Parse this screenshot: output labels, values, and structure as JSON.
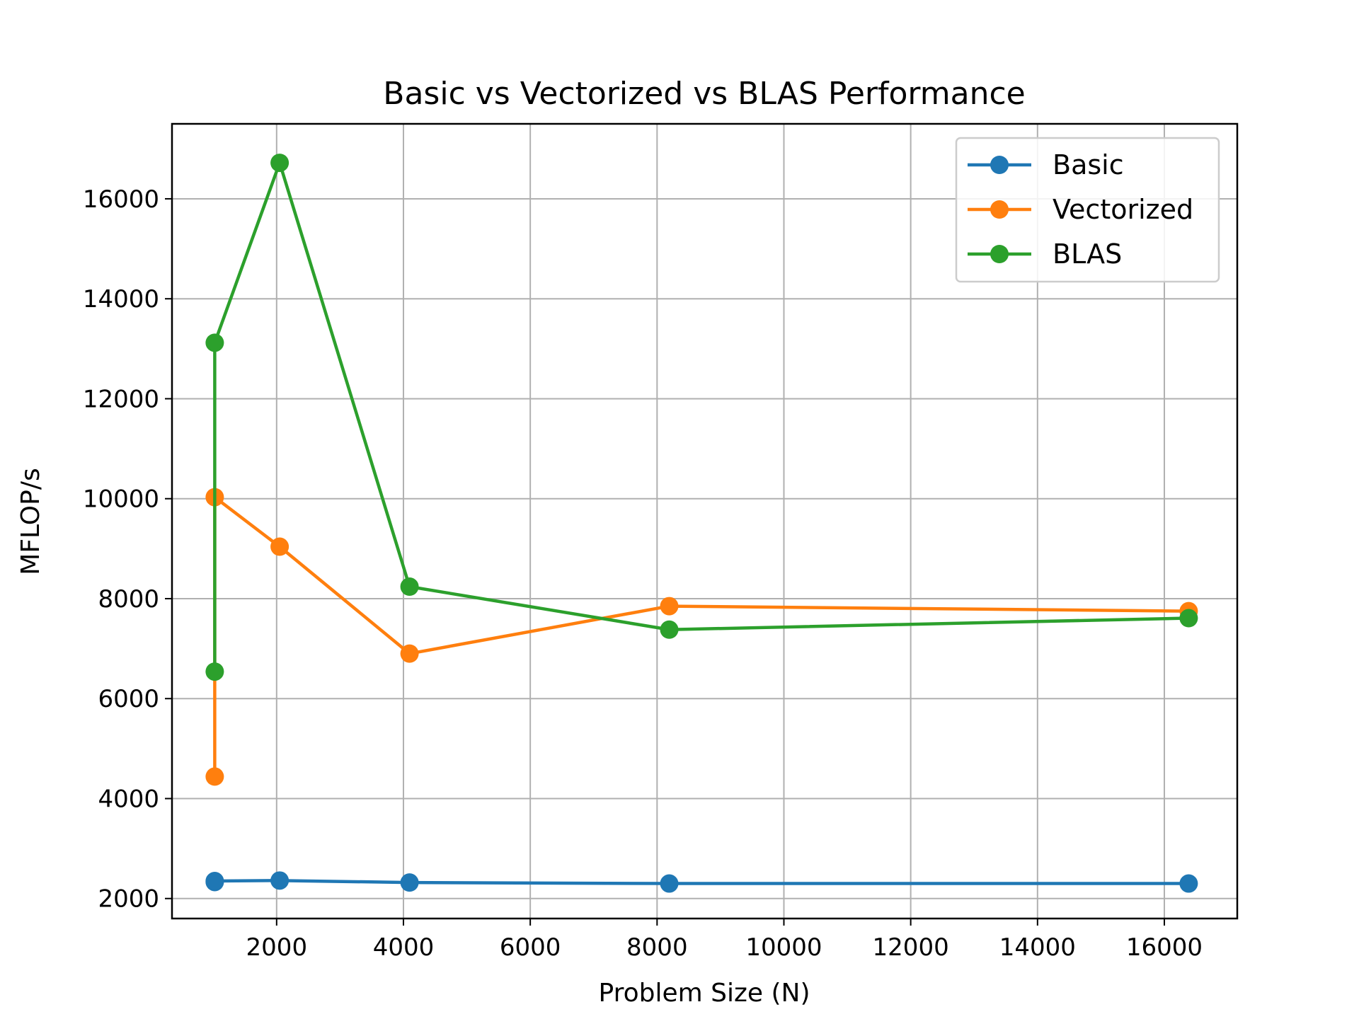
{
  "chart_data": {
    "type": "line",
    "title": "Basic vs Vectorized vs BLAS Performance",
    "xlabel": "Problem Size (N)",
    "ylabel": "MFLOP/s",
    "xlim": [
      350,
      17150
    ],
    "ylim": [
      1600,
      17500
    ],
    "xticks": [
      2000,
      4000,
      6000,
      8000,
      10000,
      12000,
      14000,
      16000
    ],
    "yticks": [
      2000,
      4000,
      6000,
      8000,
      10000,
      12000,
      14000,
      16000
    ],
    "grid": true,
    "legend_position": "top-right",
    "x": [
      1024,
      1024,
      2048,
      4096,
      8192,
      16384
    ],
    "series": [
      {
        "name": "Basic",
        "color": "#1f77b4",
        "values": [
          2330,
          2350,
          2360,
          2320,
          2300,
          2300
        ]
      },
      {
        "name": "Vectorized",
        "color": "#ff7f0e",
        "values": [
          4440,
          10030,
          9040,
          6900,
          7850,
          7750
        ]
      },
      {
        "name": "BLAS",
        "color": "#2ca02c",
        "values": [
          6540,
          13120,
          16720,
          8240,
          7380,
          7610
        ]
      }
    ]
  }
}
